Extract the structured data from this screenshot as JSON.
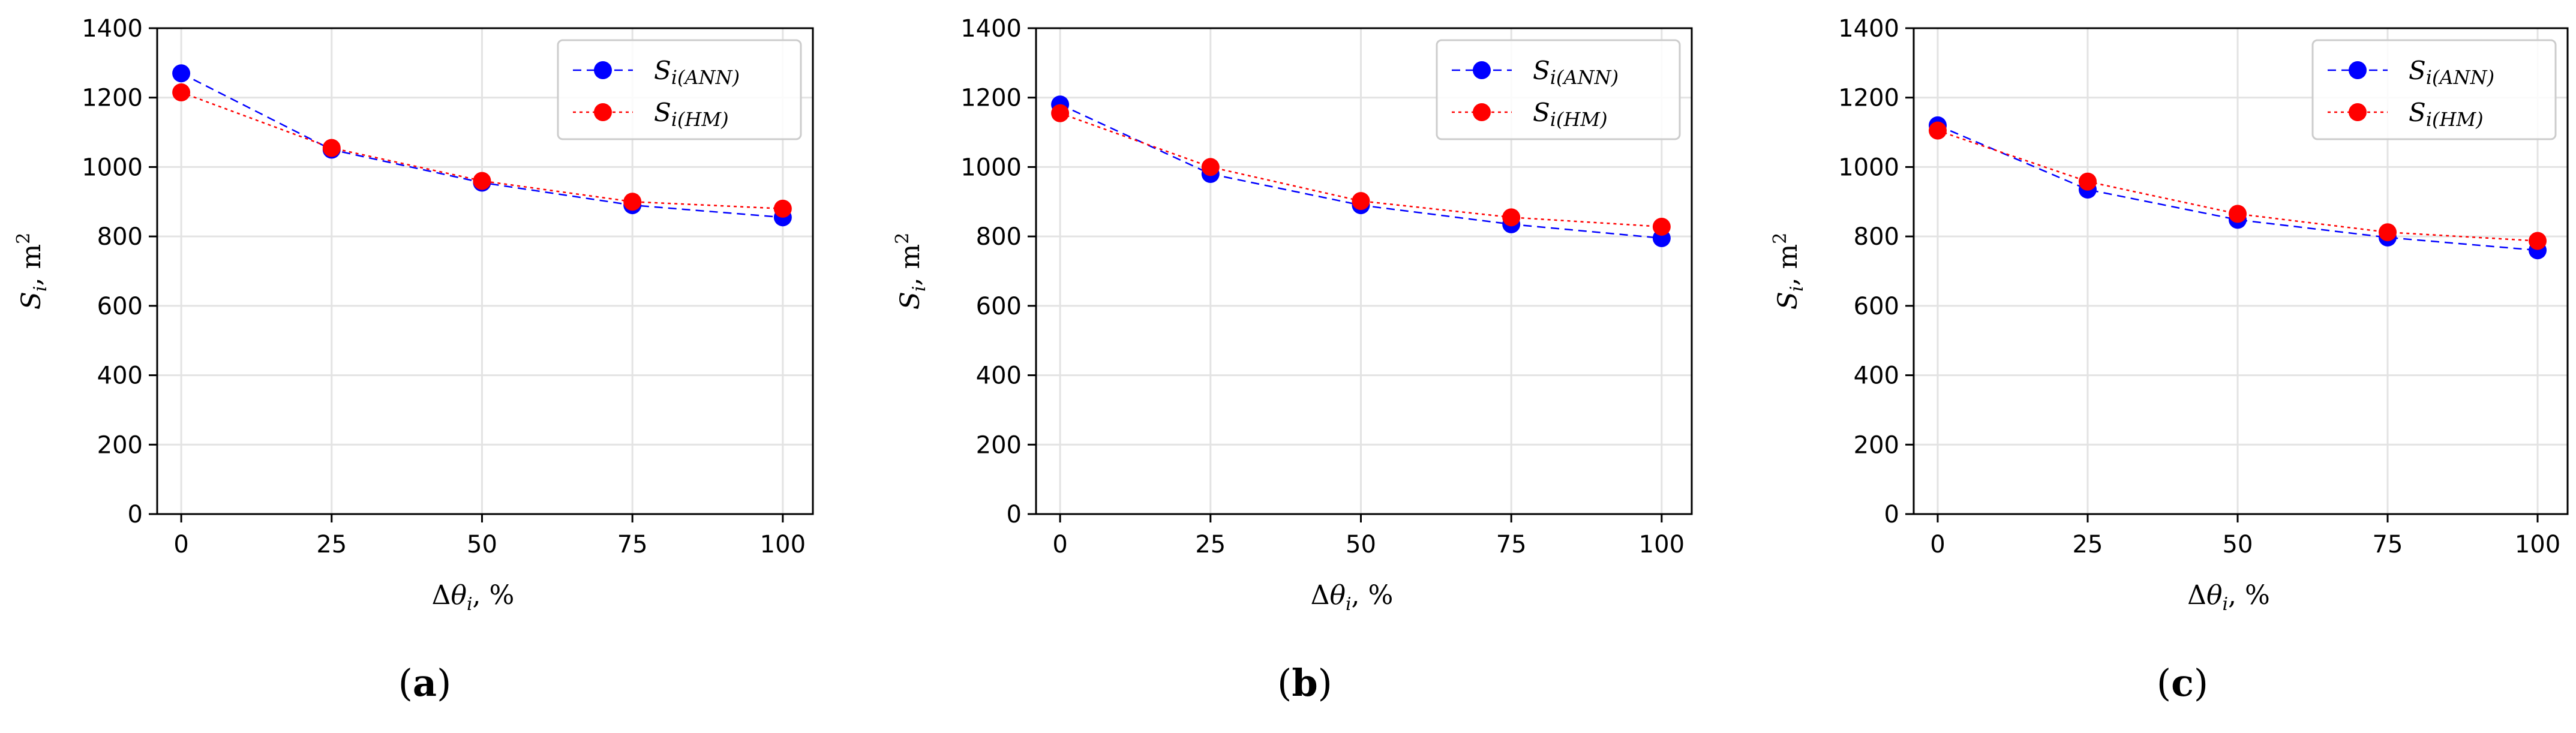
{
  "chart_data": [
    {
      "type": "line",
      "caption": "(a)",
      "caption_letter": "a",
      "xlabel": "Δθi, %",
      "ylabel": "Si, m²",
      "x": [
        0,
        25,
        50,
        75,
        100
      ],
      "xticks": [
        "0",
        "25",
        "50",
        "75",
        "100"
      ],
      "yticks": [
        "0",
        "200",
        "400",
        "600",
        "800",
        "1000",
        "1200",
        "1400"
      ],
      "xlim": [
        -4,
        105
      ],
      "ylim": [
        0,
        1400
      ],
      "grid": true,
      "legend_position": "top-right",
      "series": [
        {
          "name": "Si(ANN)",
          "name_main": "S",
          "name_sub": "i(ANN)",
          "color": "#0000ff",
          "dash": "dashed",
          "values": [
            1270,
            1050,
            955,
            890,
            855
          ]
        },
        {
          "name": "Si(HM)",
          "name_main": "S",
          "name_sub": "i(HM)",
          "color": "#ff0000",
          "dash": "dotted",
          "values": [
            1215,
            1055,
            960,
            900,
            880
          ]
        }
      ]
    },
    {
      "type": "line",
      "caption": "(b)",
      "caption_letter": "b",
      "xlabel": "Δθi, %",
      "ylabel": "Si, m²",
      "x": [
        0,
        25,
        50,
        75,
        100
      ],
      "xticks": [
        "0",
        "25",
        "50",
        "75",
        "100"
      ],
      "yticks": [
        "0",
        "200",
        "400",
        "600",
        "800",
        "1000",
        "1200",
        "1400"
      ],
      "xlim": [
        -4,
        105
      ],
      "ylim": [
        0,
        1400
      ],
      "grid": true,
      "legend_position": "top-right",
      "series": [
        {
          "name": "Si(ANN)",
          "name_main": "S",
          "name_sub": "i(ANN)",
          "color": "#0000ff",
          "dash": "dashed",
          "values": [
            1180,
            980,
            890,
            835,
            795
          ]
        },
        {
          "name": "Si(HM)",
          "name_main": "S",
          "name_sub": "i(HM)",
          "color": "#ff0000",
          "dash": "dotted",
          "values": [
            1155,
            1000,
            902,
            855,
            828
          ]
        }
      ]
    },
    {
      "type": "line",
      "caption": "(c)",
      "caption_letter": "c",
      "xlabel": "Δθi, %",
      "ylabel": "Si, m²",
      "x": [
        0,
        25,
        50,
        75,
        100
      ],
      "xticks": [
        "0",
        "25",
        "50",
        "75",
        "100"
      ],
      "yticks": [
        "0",
        "200",
        "400",
        "600",
        "800",
        "1000",
        "1200",
        "1400"
      ],
      "xlim": [
        -4,
        105
      ],
      "ylim": [
        0,
        1400
      ],
      "grid": true,
      "legend_position": "top-right",
      "series": [
        {
          "name": "Si(ANN)",
          "name_main": "S",
          "name_sub": "i(ANN)",
          "color": "#0000ff",
          "dash": "dashed",
          "values": [
            1120,
            935,
            848,
            797,
            760
          ]
        },
        {
          "name": "Si(HM)",
          "name_main": "S",
          "name_sub": "i(HM)",
          "color": "#ff0000",
          "dash": "dotted",
          "values": [
            1105,
            958,
            865,
            812,
            787
          ]
        }
      ]
    }
  ]
}
